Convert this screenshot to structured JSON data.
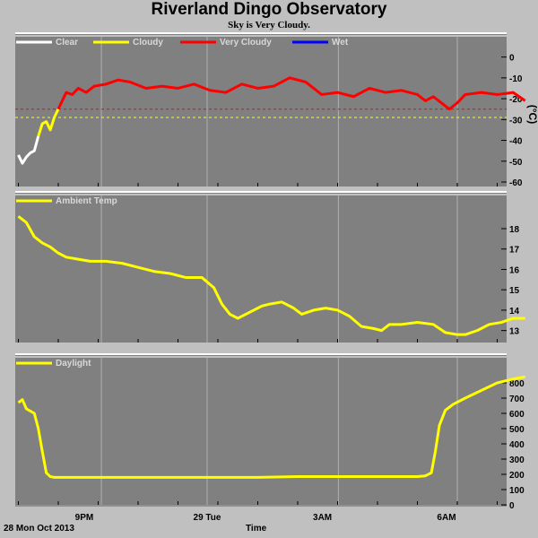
{
  "title": "Riverland Dingo Observatory",
  "subtitle": "Sky is Very Cloudy.",
  "footer": {
    "date": "28 Mon Oct 2013",
    "xlabel": "Time"
  },
  "x_ticks": [
    "9PM",
    "29 Tue",
    "3AM",
    "6AM"
  ],
  "colors": {
    "clear": "#ffffff",
    "cloudy": "#ffff00",
    "very_cloudy": "#ff0000",
    "wet": "#0000ff",
    "panel": "#808080"
  },
  "chart_data": [
    {
      "type": "line",
      "name": "sky",
      "legend": [
        "Clear",
        "Cloudy",
        "Very Cloudy",
        "Wet"
      ],
      "ylabel": "(°C)",
      "ylim": [
        -60,
        5
      ],
      "yticks": [
        0,
        -10,
        -20,
        -30,
        -40,
        -50,
        -60
      ],
      "thresholds": [
        {
          "value": -25,
          "color": "#ff0000"
        },
        {
          "value": -29,
          "color": "#ffff00"
        }
      ],
      "x_hours": [
        0.0,
        0.1,
        0.2,
        0.3,
        0.4,
        0.5,
        0.6,
        0.7,
        0.8,
        0.9,
        1.0,
        1.1,
        1.2,
        1.35,
        1.5,
        1.7,
        1.9,
        2.2,
        2.5,
        2.8,
        3.2,
        3.6,
        4.0,
        4.4,
        4.8,
        5.2,
        5.6,
        6.0,
        6.4,
        6.8,
        7.2,
        7.6,
        8.0,
        8.4,
        8.8,
        9.2,
        9.6,
        10.0,
        10.2,
        10.4,
        10.6,
        10.8,
        11.0,
        11.2,
        11.6,
        12.0,
        12.4,
        12.7
      ],
      "values": [
        -47,
        -51,
        -48,
        -46,
        -45,
        -38,
        -32,
        -31,
        -35,
        -29,
        -25,
        -21,
        -17,
        -18,
        -15,
        -17,
        -14,
        -13,
        -11,
        -12,
        -15,
        -14,
        -15,
        -13,
        -16,
        -17,
        -13,
        -15,
        -14,
        -10,
        -12,
        -18,
        -17,
        -19,
        -15,
        -17,
        -16,
        -18,
        -21,
        -19,
        -22,
        -25,
        -22,
        -18,
        -17,
        -18,
        -17,
        -21
      ]
    },
    {
      "type": "line",
      "name": "ambient",
      "legend": [
        "Ambient Temp"
      ],
      "ylim": [
        12.5,
        19.1
      ],
      "yticks": [
        13,
        14,
        15,
        16,
        17,
        18
      ],
      "x_hours": [
        0.0,
        0.2,
        0.4,
        0.6,
        0.8,
        1.0,
        1.2,
        1.5,
        1.8,
        2.2,
        2.6,
        3.0,
        3.4,
        3.8,
        4.2,
        4.6,
        4.9,
        5.1,
        5.3,
        5.5,
        5.8,
        6.1,
        6.3,
        6.6,
        6.9,
        7.1,
        7.4,
        7.7,
        8.0,
        8.3,
        8.6,
        8.9,
        9.1,
        9.3,
        9.6,
        10.0,
        10.4,
        10.7,
        11.0,
        11.2,
        11.5,
        11.8,
        12.1,
        12.4,
        12.7
      ],
      "values": [
        18.6,
        18.3,
        17.6,
        17.3,
        17.1,
        16.8,
        16.6,
        16.5,
        16.4,
        16.4,
        16.3,
        16.1,
        15.9,
        15.8,
        15.6,
        15.6,
        15.1,
        14.3,
        13.8,
        13.6,
        13.9,
        14.2,
        14.3,
        14.4,
        14.1,
        13.8,
        14.0,
        14.1,
        14.0,
        13.7,
        13.2,
        13.1,
        13.0,
        13.3,
        13.3,
        13.4,
        13.3,
        12.9,
        12.8,
        12.8,
        13.0,
        13.3,
        13.4,
        13.6,
        13.6
      ]
    },
    {
      "type": "line",
      "name": "daylight",
      "legend": [
        "Daylight"
      ],
      "ylim": [
        0,
        900
      ],
      "yticks": [
        0,
        100,
        200,
        300,
        400,
        500,
        600,
        700,
        800
      ],
      "x_hours": [
        0.0,
        0.1,
        0.2,
        0.4,
        0.5,
        0.6,
        0.7,
        0.8,
        0.9,
        1.0,
        1.5,
        2.0,
        3.0,
        4.0,
        5.0,
        6.0,
        7.0,
        8.0,
        9.0,
        10.0,
        10.2,
        10.35,
        10.45,
        10.55,
        10.7,
        10.9,
        11.2,
        11.6,
        12.0,
        12.4,
        12.7
      ],
      "values": [
        670,
        690,
        630,
        600,
        500,
        350,
        210,
        185,
        180,
        180,
        180,
        180,
        180,
        180,
        180,
        180,
        185,
        185,
        185,
        185,
        190,
        210,
        350,
        520,
        620,
        660,
        700,
        750,
        800,
        825,
        840
      ]
    }
  ]
}
